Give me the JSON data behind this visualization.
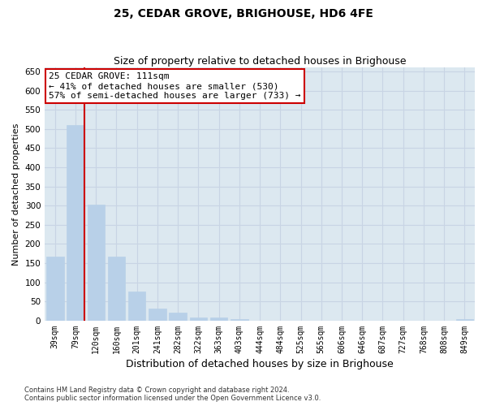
{
  "title": "25, CEDAR GROVE, BRIGHOUSE, HD6 4FE",
  "subtitle": "Size of property relative to detached houses in Brighouse",
  "xlabel": "Distribution of detached houses by size in Brighouse",
  "ylabel": "Number of detached properties",
  "categories": [
    "39sqm",
    "79sqm",
    "120sqm",
    "160sqm",
    "201sqm",
    "241sqm",
    "282sqm",
    "322sqm",
    "363sqm",
    "403sqm",
    "444sqm",
    "484sqm",
    "525sqm",
    "565sqm",
    "606sqm",
    "646sqm",
    "687sqm",
    "727sqm",
    "768sqm",
    "808sqm",
    "849sqm"
  ],
  "values": [
    168,
    510,
    302,
    168,
    76,
    32,
    20,
    9,
    9,
    5,
    0,
    0,
    0,
    0,
    0,
    0,
    0,
    0,
    0,
    0,
    5
  ],
  "bar_color": "#b8d0e8",
  "bar_edge_color": "#b8d0e8",
  "property_line_bar_index": 1,
  "property_line_color": "#cc0000",
  "annotation_text": "25 CEDAR GROVE: 111sqm\n← 41% of detached houses are smaller (530)\n57% of semi-detached houses are larger (733) →",
  "annotation_box_color": "#cc0000",
  "ylim": [
    0,
    660
  ],
  "yticks": [
    0,
    50,
    100,
    150,
    200,
    250,
    300,
    350,
    400,
    450,
    500,
    550,
    600,
    650
  ],
  "title_fontsize": 10,
  "subtitle_fontsize": 9,
  "xlabel_fontsize": 9,
  "ylabel_fontsize": 8,
  "footer_text": "Contains HM Land Registry data © Crown copyright and database right 2024.\nContains public sector information licensed under the Open Government Licence v3.0.",
  "background_color": "#ffffff",
  "grid_color": "#c8d4e4",
  "axes_bg_color": "#dce8f0"
}
